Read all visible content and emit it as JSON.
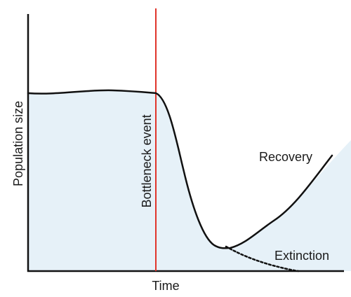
{
  "labels": {
    "y_axis": "Population size",
    "x_axis": "Time",
    "event": "Bottleneck event",
    "recovery": "Recovery",
    "extinction": "Extinction"
  },
  "colors": {
    "fill": "#e6f1f8",
    "curve": "#111111",
    "axis": "#111111",
    "event_line": "#e0352b"
  }
}
